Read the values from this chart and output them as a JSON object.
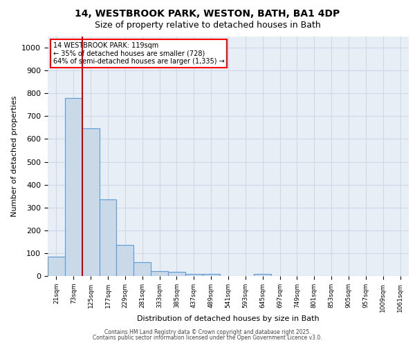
{
  "title_line1": "14, WESTBROOK PARK, WESTON, BATH, BA1 4DP",
  "title_line2": "Size of property relative to detached houses in Bath",
  "xlabel": "Distribution of detached houses by size in Bath",
  "ylabel": "Number of detached properties",
  "bar_labels": [
    "21sqm",
    "73sqm",
    "125sqm",
    "177sqm",
    "229sqm",
    "281sqm",
    "333sqm",
    "385sqm",
    "437sqm",
    "489sqm",
    "541sqm",
    "593sqm",
    "645sqm",
    "697sqm",
    "749sqm",
    "801sqm",
    "853sqm",
    "905sqm",
    "957sqm",
    "1009sqm",
    "1061sqm"
  ],
  "bar_values": [
    85,
    780,
    648,
    335,
    135,
    60,
    22,
    17,
    10,
    10,
    0,
    0,
    10,
    0,
    0,
    0,
    0,
    0,
    0,
    0,
    0
  ],
  "bar_color": "#c9d9e8",
  "bar_edge_color": "#5b9bd5",
  "grid_color": "#d0d8e8",
  "bg_color": "#e8eef5",
  "property_line_x": 2,
  "property_size": "119sqm",
  "annotation_text": "14 WESTBROOK PARK: 119sqm\n← 35% of detached houses are smaller (728)\n64% of semi-detached houses are larger (1,335) →",
  "annotation_box_color": "#ff0000",
  "annotation_fill": "#ffffff",
  "property_line_color": "#cc0000",
  "ylim": [
    0,
    1050
  ],
  "yticks": [
    0,
    100,
    200,
    300,
    400,
    500,
    600,
    700,
    800,
    900,
    1000
  ],
  "footer_line1": "Contains HM Land Registry data © Crown copyright and database right 2025.",
  "footer_line2": "Contains public sector information licensed under the Open Government Licence v3.0."
}
